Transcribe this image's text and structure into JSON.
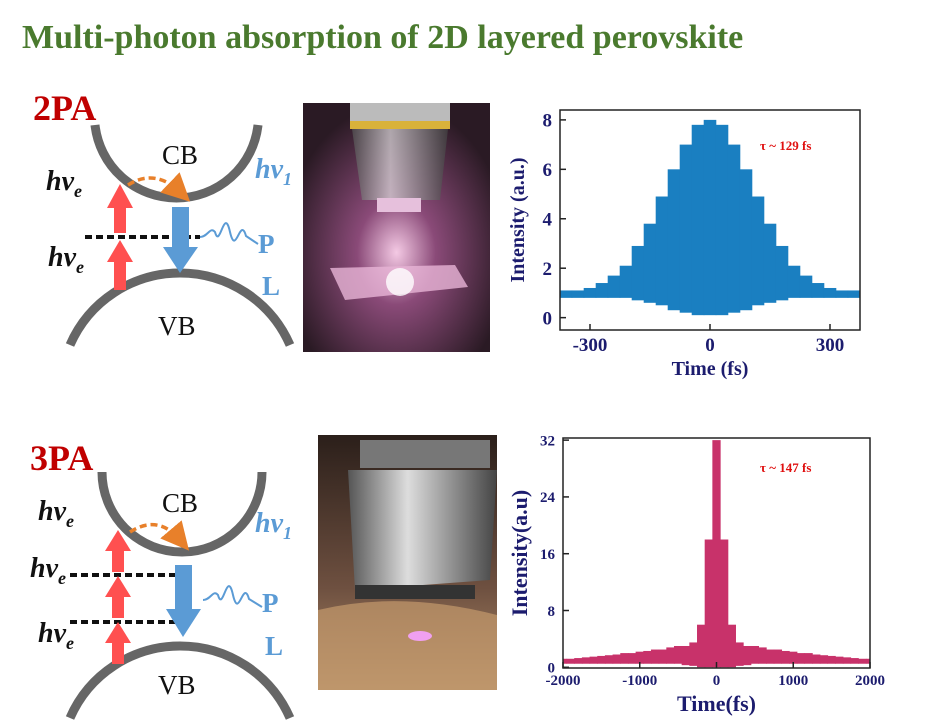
{
  "title": "Multi-photon absorption of 2D layered perovskite",
  "panels": [
    {
      "label": "2PA",
      "cb": "CB",
      "vb": "VB",
      "photons": [
        {
          "main": "hv",
          "sub": "e"
        },
        {
          "main": "hv",
          "sub": "e"
        }
      ],
      "emission": {
        "main": "hv",
        "sub": "1"
      },
      "pl": [
        "P",
        "L"
      ]
    },
    {
      "label": "3PA",
      "cb": "CB",
      "vb": "VB",
      "photons": [
        {
          "main": "hv",
          "sub": "e"
        },
        {
          "main": "hv",
          "sub": "e"
        },
        {
          "main": "hv",
          "sub": "e"
        }
      ],
      "emission": {
        "main": "hv",
        "sub": "1"
      },
      "pl": [
        "P",
        "L"
      ]
    }
  ],
  "chart_data": [
    {
      "type": "area",
      "xlabel": "Time (fs)",
      "ylabel": "Intensity (a.u.)",
      "annotation": "τ ~ 129 fs",
      "x": [
        -360,
        -330,
        -300,
        -270,
        -240,
        -210,
        -180,
        -150,
        -120,
        -90,
        -60,
        -30,
        0,
        30,
        60,
        90,
        120,
        150,
        180,
        210,
        240,
        270,
        300,
        330,
        360
      ],
      "series": [
        {
          "color": "#1a7fc1",
          "values": [
            1.1,
            1.1,
            1.2,
            1.4,
            1.7,
            2.1,
            2.9,
            3.8,
            4.9,
            6.0,
            7.0,
            7.8,
            8,
            7.8,
            7.0,
            6.0,
            4.9,
            3.8,
            2.9,
            2.1,
            1.7,
            1.4,
            1.2,
            1.1,
            1.1
          ]
        },
        {
          "color": "#1a7fc1",
          "values": [
            0.8,
            0.8,
            0.8,
            0.8,
            0.8,
            0.8,
            0.7,
            0.6,
            0.5,
            0.3,
            0.2,
            0.1,
            0.1,
            0.1,
            0.2,
            0.3,
            0.5,
            0.6,
            0.7,
            0.8,
            0.8,
            0.8,
            0.8,
            0.8,
            0.8
          ]
        }
      ],
      "xlim": [
        -375,
        375
      ],
      "ylim": [
        -0.5,
        8.4
      ],
      "xticks": [
        -300,
        0,
        300
      ],
      "yticks": [
        0,
        2,
        4,
        6,
        8
      ]
    },
    {
      "type": "area",
      "xlabel": "Time(fs)",
      "ylabel": "Intensity(a.u)",
      "annotation": "τ ~ 147 fs",
      "x": [
        -2000,
        -1900,
        -1800,
        -1700,
        -1600,
        -1500,
        -1400,
        -1300,
        -1200,
        -1100,
        -1000,
        -900,
        -800,
        -700,
        -600,
        -500,
        -400,
        -300,
        -200,
        -100,
        0,
        100,
        200,
        300,
        400,
        500,
        600,
        700,
        800,
        900,
        1000,
        1100,
        1200,
        1300,
        1400,
        1500,
        1600,
        1700,
        1800,
        1900,
        2000
      ],
      "series": [
        {
          "color": "#c8326a",
          "values": [
            1.2,
            1.2,
            1.3,
            1.4,
            1.5,
            1.6,
            1.7,
            1.8,
            2,
            2,
            2.2,
            2.3,
            2.5,
            2.5,
            2.8,
            3,
            3,
            3.5,
            6,
            18,
            32,
            18,
            6,
            3.5,
            3,
            3,
            2.8,
            2.5,
            2.5,
            2.3,
            2.2,
            2,
            2,
            1.8,
            1.7,
            1.6,
            1.5,
            1.4,
            1.3,
            1.2,
            1.2
          ]
        },
        {
          "color": "#c8326a",
          "values": [
            0.5,
            0.5,
            0.5,
            0.5,
            0.5,
            0.5,
            0.5,
            0.5,
            0.5,
            0.5,
            0.5,
            0.5,
            0.5,
            0.5,
            0.5,
            0.5,
            0.3,
            0.2,
            0,
            0,
            0,
            0,
            0,
            0.2,
            0.3,
            0.5,
            0.5,
            0.5,
            0.5,
            0.5,
            0.5,
            0.5,
            0.5,
            0.5,
            0.5,
            0.5,
            0.5,
            0.5,
            0.5,
            0.5,
            0.5
          ]
        }
      ],
      "xlim": [
        -2000,
        2000
      ],
      "ylim": [
        -0.1,
        32.3
      ],
      "xticks": [
        -2000,
        -1000,
        0,
        1000,
        2000
      ],
      "yticks": [
        0,
        8,
        16,
        24,
        32
      ]
    }
  ]
}
